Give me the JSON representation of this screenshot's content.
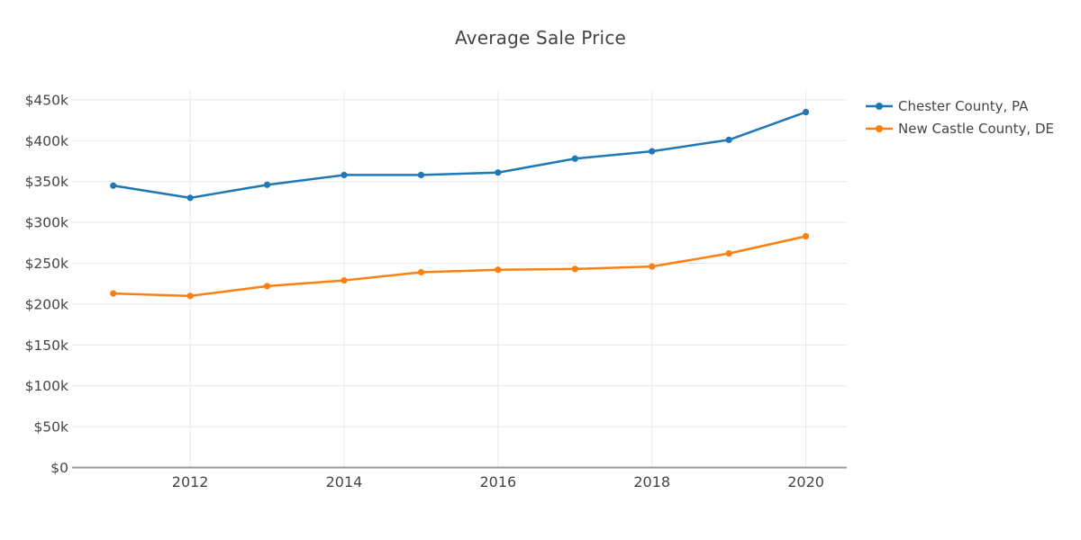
{
  "title": "Average Sale Price",
  "chart_data": {
    "type": "line",
    "title": "Average Sale Price",
    "x": [
      2011,
      2012,
      2013,
      2014,
      2015,
      2016,
      2017,
      2018,
      2019,
      2020
    ],
    "series": [
      {
        "name": "Chester County, PA",
        "color": "#1f77b4",
        "values": [
          345000,
          330000,
          346000,
          358000,
          358000,
          361000,
          378000,
          387000,
          401000,
          435000
        ]
      },
      {
        "name": "New Castle County, DE",
        "color": "#ff7f0e",
        "values": [
          213000,
          210000,
          222000,
          229000,
          239000,
          242000,
          243000,
          246000,
          262000,
          283000
        ]
      }
    ],
    "xlabel": "",
    "ylabel": "",
    "ylim": [
      0,
      450000
    ],
    "ytick_step": 50000,
    "ytick_labels": [
      "$0",
      "$50k",
      "$100k",
      "$150k",
      "$200k",
      "$250k",
      "$300k",
      "$350k",
      "$400k",
      "$450k"
    ],
    "xtick_years": [
      2012,
      2014,
      2016,
      2018,
      2020
    ],
    "xtick_labels": [
      "2012",
      "2014",
      "2016",
      "2018",
      "2020"
    ],
    "grid": true,
    "legend_position": "right"
  },
  "colors": {
    "background": "#ffffff",
    "grid_line": "#e8e8e8",
    "axis_line": "#999999",
    "tick_text": "#444444",
    "title_text": "#444444"
  }
}
